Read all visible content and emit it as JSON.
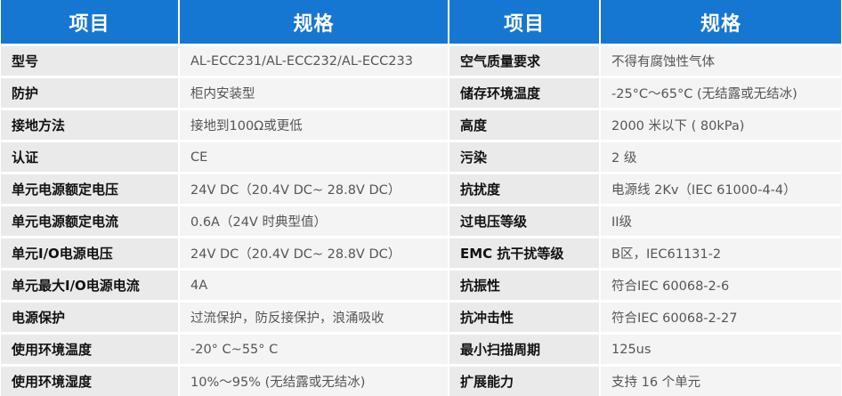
{
  "headers": {
    "item_left": "项目",
    "spec_left": "规格",
    "item_right": "项目",
    "spec_right": "规格"
  },
  "rows": [
    {
      "item_left": "型号",
      "spec_left": "AL-ECC231/AL-ECC232/AL-ECC233",
      "item_right": "空气质量要求",
      "spec_right": "不得有腐蚀性气体"
    },
    {
      "item_left": "防护",
      "spec_left": "柜内安装型",
      "item_right": "储存环境温度",
      "spec_right": "-25°C～65°C (无结露或无结冰)"
    },
    {
      "item_left": "接地方法",
      "spec_left": "接地到100Ω或更低",
      "item_right": "高度",
      "spec_right": "2000 米以下 ( 80kPa)"
    },
    {
      "item_left": "认证",
      "spec_left": "CE",
      "item_right": "污染",
      "spec_right": "2 级"
    },
    {
      "item_left": "单元电源额定电压",
      "spec_left": "24V DC（20.4V DC~ 28.8V DC）",
      "item_right": "抗扰度",
      "spec_right": "电源线 2Kv（IEC 61000-4-4）"
    },
    {
      "item_left": "单元电源额定电流",
      "spec_left": "0.6A（24V 时典型值）",
      "item_right": "过电压等级",
      "spec_right": "II级"
    },
    {
      "item_left": "单元I/O电源电压",
      "spec_left": "24V DC（20.4V DC~ 28.8V DC）",
      "item_right": "EMC 抗干扰等级",
      "spec_right": "B区，IEC61131-2"
    },
    {
      "item_left": "单元最大I/O电源电流",
      "spec_left": "4A",
      "item_right": "抗振性",
      "spec_right": "符合IEC 60068-2-6"
    },
    {
      "item_left": "电源保护",
      "spec_left": "过流保护，防反接保护，浪涌吸收",
      "item_right": "抗冲击性",
      "spec_right": "符合IEC 60068-2-27"
    },
    {
      "item_left": "使用环境温度",
      "spec_left": "-20° C~55° C",
      "item_right": "最小扫描周期",
      "spec_right": "125us"
    },
    {
      "item_left": "使用环境湿度",
      "spec_left": "10%～95% (无结露或无结冰)",
      "item_right": "扩展能力",
      "spec_right": "支持 16 个单元"
    }
  ],
  "colors": {
    "header_bg": "#1677d2",
    "header_text": "#ffffff",
    "label_bg": "#eaeaea",
    "value_bg": "#f4f4f4"
  }
}
